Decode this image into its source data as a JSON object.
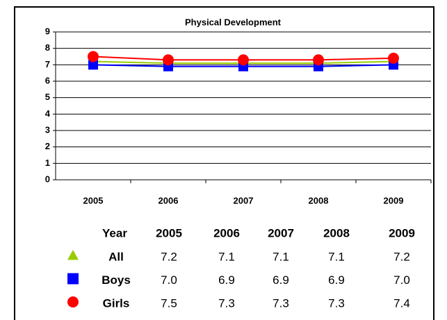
{
  "chart_data": {
    "type": "line",
    "title": "Physical Development",
    "categories": [
      "2005",
      "2006",
      "2007",
      "2008",
      "2009"
    ],
    "table_header": "Year",
    "series": [
      {
        "name": "All",
        "color": "#99cc00",
        "marker": "triangle",
        "values": [
          7.2,
          7.1,
          7.1,
          7.1,
          7.2
        ],
        "value_labels": [
          "7.2",
          "7.1",
          "7.1",
          "7.1",
          "7.2"
        ]
      },
      {
        "name": "Boys",
        "color": "#0000ff",
        "marker": "square",
        "values": [
          7.0,
          6.9,
          6.9,
          6.9,
          7.0
        ],
        "value_labels": [
          "7.0",
          "6.9",
          "6.9",
          "6.9",
          "7.0"
        ]
      },
      {
        "name": "Girls",
        "color": "#ff0000",
        "marker": "circle",
        "values": [
          7.5,
          7.3,
          7.3,
          7.3,
          7.4
        ],
        "value_labels": [
          "7.5",
          "7.3",
          "7.3",
          "7.3",
          "7.4"
        ]
      }
    ],
    "ylim": [
      0,
      9
    ],
    "yticks": [
      0,
      1,
      2,
      3,
      4,
      5,
      6,
      7,
      8,
      9
    ],
    "grid": true
  }
}
